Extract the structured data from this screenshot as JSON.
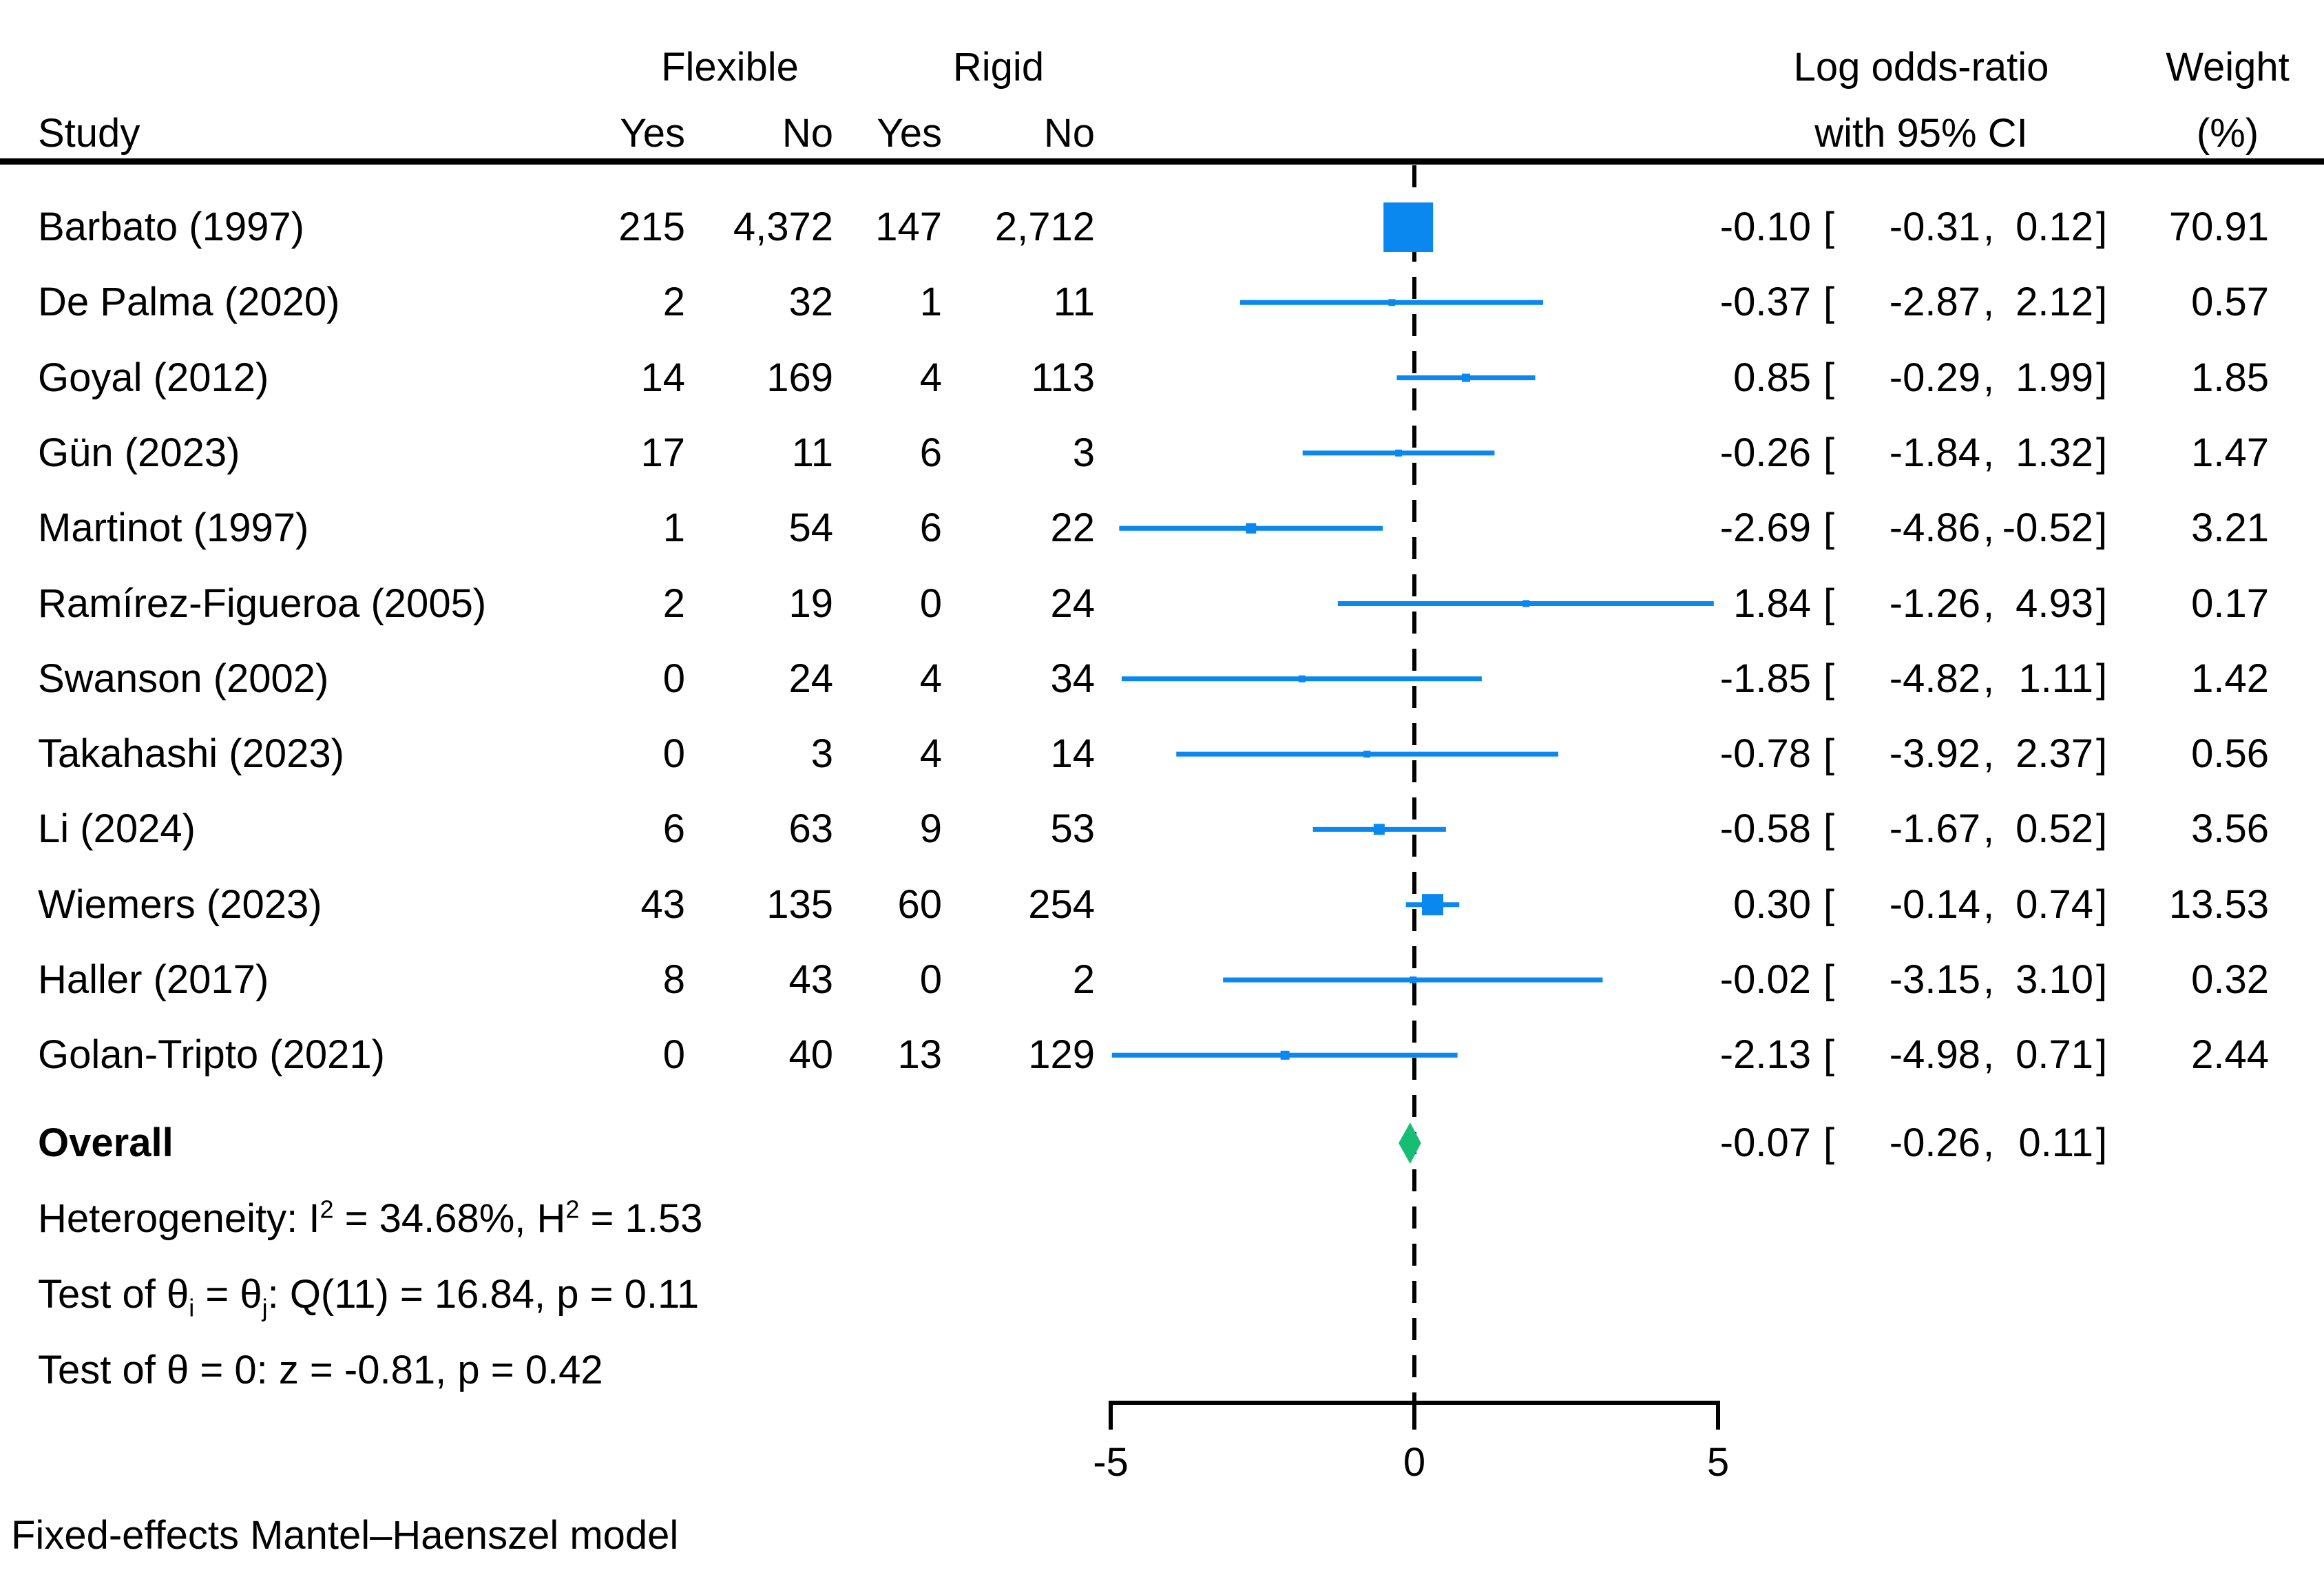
{
  "header": {
    "study": "Study",
    "group1": "Flexible",
    "group2": "Rigid",
    "col_yes1": "Yes",
    "col_no1": "No",
    "col_yes2": "Yes",
    "col_no2": "No",
    "effect_line1": "Log odds-ratio",
    "effect_line2": "with 95% CI",
    "weight_line1": "Weight",
    "weight_line2": "(%)"
  },
  "symbols": {
    "open": "[",
    "comma": ",",
    "close": "]"
  },
  "stats": {
    "het_pre": "Heterogeneity: I",
    "het_sup1": "2",
    "het_mid": " = 34.68%, H",
    "het_sup2": "2",
    "het_post": " = 1.53",
    "q_pre": "Test of θ",
    "q_sub1": "i",
    "q_mid": " = θ",
    "q_sub2": "j",
    "q_post": ": Q(11) = 16.84, p = 0.11",
    "z_line": "Test of θ = 0: z = -0.81, p = 0.42"
  },
  "footer": "Fixed-effects Mantel–Haenszel model",
  "chart_data": {
    "type": "forest",
    "title": "",
    "effect_measure": "Log odds-ratio with 95% CI",
    "model": "Fixed-effects Mantel–Haenszel model",
    "legend_position": "none",
    "axis": {
      "min": -5,
      "max": 5,
      "zero_line": 0,
      "ticks": [
        {
          "v": -5,
          "label": "-5"
        },
        {
          "v": 0,
          "label": "0"
        },
        {
          "v": 5,
          "label": "5"
        }
      ]
    },
    "colors": {
      "marker": "#0b87f0",
      "ci_line": "#0b87f0",
      "diamond": "#18bd74",
      "axis": "#000000"
    },
    "studies": [
      {
        "label": "Barbato (1997)",
        "flex_yes": "215",
        "flex_no": "4,372",
        "rigid_yes": "147",
        "rigid_no": "2,712",
        "est": -0.1,
        "lo": -0.31,
        "hi": 0.12,
        "est_str": "-0.10",
        "lo_str": "-0.31",
        "hi_str": "0.12",
        "weight": 70.91,
        "weight_str": "70.91"
      },
      {
        "label": "De Palma (2020)",
        "flex_yes": "2",
        "flex_no": "32",
        "rigid_yes": "1",
        "rigid_no": "11",
        "est": -0.37,
        "lo": -2.87,
        "hi": 2.12,
        "est_str": "-0.37",
        "lo_str": "-2.87",
        "hi_str": "2.12",
        "weight": 0.57,
        "weight_str": "0.57"
      },
      {
        "label": "Goyal (2012)",
        "flex_yes": "14",
        "flex_no": "169",
        "rigid_yes": "4",
        "rigid_no": "113",
        "est": 0.85,
        "lo": -0.29,
        "hi": 1.99,
        "est_str": "0.85",
        "lo_str": "-0.29",
        "hi_str": "1.99",
        "weight": 1.85,
        "weight_str": "1.85"
      },
      {
        "label": "Gün (2023)",
        "flex_yes": "17",
        "flex_no": "11",
        "rigid_yes": "6",
        "rigid_no": "3",
        "est": -0.26,
        "lo": -1.84,
        "hi": 1.32,
        "est_str": "-0.26",
        "lo_str": "-1.84",
        "hi_str": "1.32",
        "weight": 1.47,
        "weight_str": "1.47"
      },
      {
        "label": "Martinot (1997)",
        "flex_yes": "1",
        "flex_no": "54",
        "rigid_yes": "6",
        "rigid_no": "22",
        "est": -2.69,
        "lo": -4.86,
        "hi": -0.52,
        "est_str": "-2.69",
        "lo_str": "-4.86",
        "hi_str": "-0.52",
        "weight": 3.21,
        "weight_str": "3.21"
      },
      {
        "label": "Ramírez-Figueroa (2005)",
        "flex_yes": "2",
        "flex_no": "19",
        "rigid_yes": "0",
        "rigid_no": "24",
        "est": 1.84,
        "lo": -1.26,
        "hi": 4.93,
        "est_str": "1.84",
        "lo_str": "-1.26",
        "hi_str": "4.93",
        "weight": 0.17,
        "weight_str": "0.17"
      },
      {
        "label": "Swanson (2002)",
        "flex_yes": "0",
        "flex_no": "24",
        "rigid_yes": "4",
        "rigid_no": "34",
        "est": -1.85,
        "lo": -4.82,
        "hi": 1.11,
        "est_str": "-1.85",
        "lo_str": "-4.82",
        "hi_str": "1.11",
        "weight": 1.42,
        "weight_str": "1.42"
      },
      {
        "label": "Takahashi (2023)",
        "flex_yes": "0",
        "flex_no": "3",
        "rigid_yes": "4",
        "rigid_no": "14",
        "est": -0.78,
        "lo": -3.92,
        "hi": 2.37,
        "est_str": "-0.78",
        "lo_str": "-3.92",
        "hi_str": "2.37",
        "weight": 0.56,
        "weight_str": "0.56"
      },
      {
        "label": "Li (2024)",
        "flex_yes": "6",
        "flex_no": "63",
        "rigid_yes": "9",
        "rigid_no": "53",
        "est": -0.58,
        "lo": -1.67,
        "hi": 0.52,
        "est_str": "-0.58",
        "lo_str": "-1.67",
        "hi_str": "0.52",
        "weight": 3.56,
        "weight_str": "3.56"
      },
      {
        "label": "Wiemers (2023)",
        "flex_yes": "43",
        "flex_no": "135",
        "rigid_yes": "60",
        "rigid_no": "254",
        "est": 0.3,
        "lo": -0.14,
        "hi": 0.74,
        "est_str": "0.30",
        "lo_str": "-0.14",
        "hi_str": "0.74",
        "weight": 13.53,
        "weight_str": "13.53"
      },
      {
        "label": "Haller (2017)",
        "flex_yes": "8",
        "flex_no": "43",
        "rigid_yes": "0",
        "rigid_no": "2",
        "est": -0.02,
        "lo": -3.15,
        "hi": 3.1,
        "est_str": "-0.02",
        "lo_str": "-3.15",
        "hi_str": "3.10",
        "weight": 0.32,
        "weight_str": "0.32"
      },
      {
        "label": "Golan-Tripto (2021)",
        "flex_yes": "0",
        "flex_no": "40",
        "rigid_yes": "13",
        "rigid_no": "129",
        "est": -2.13,
        "lo": -4.98,
        "hi": 0.71,
        "est_str": "-2.13",
        "lo_str": "-4.98",
        "hi_str": "0.71",
        "weight": 2.44,
        "weight_str": "2.44"
      }
    ],
    "overall": {
      "label": "Overall",
      "est": -0.07,
      "lo": -0.26,
      "hi": 0.11,
      "est_str": "-0.07",
      "lo_str": "-0.26",
      "hi_str": "0.11"
    }
  }
}
